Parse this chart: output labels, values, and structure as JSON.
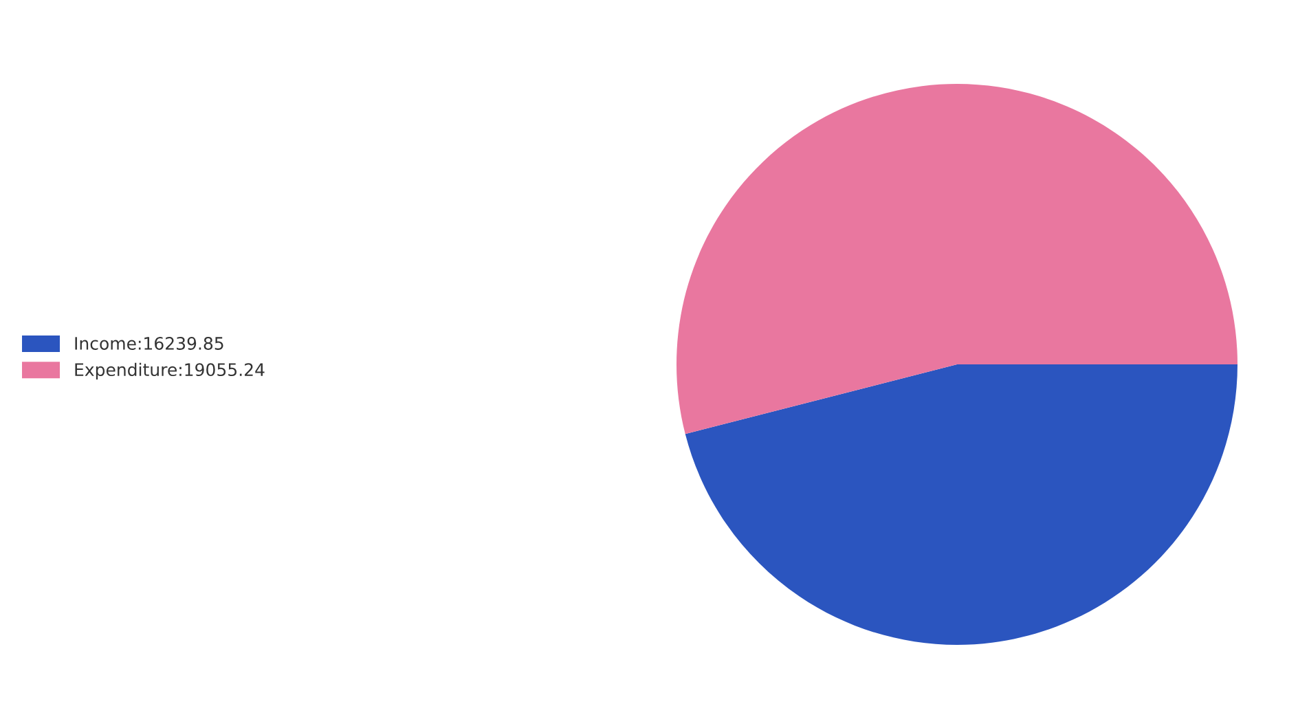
{
  "chart_data": {
    "type": "pie",
    "categories": [
      "Income:16239.85",
      "Expenditure:19055.24"
    ],
    "values": [
      16239.85,
      19055.24
    ],
    "colors": [
      "#2b55bf",
      "#e9779f"
    ],
    "legend": "left"
  }
}
